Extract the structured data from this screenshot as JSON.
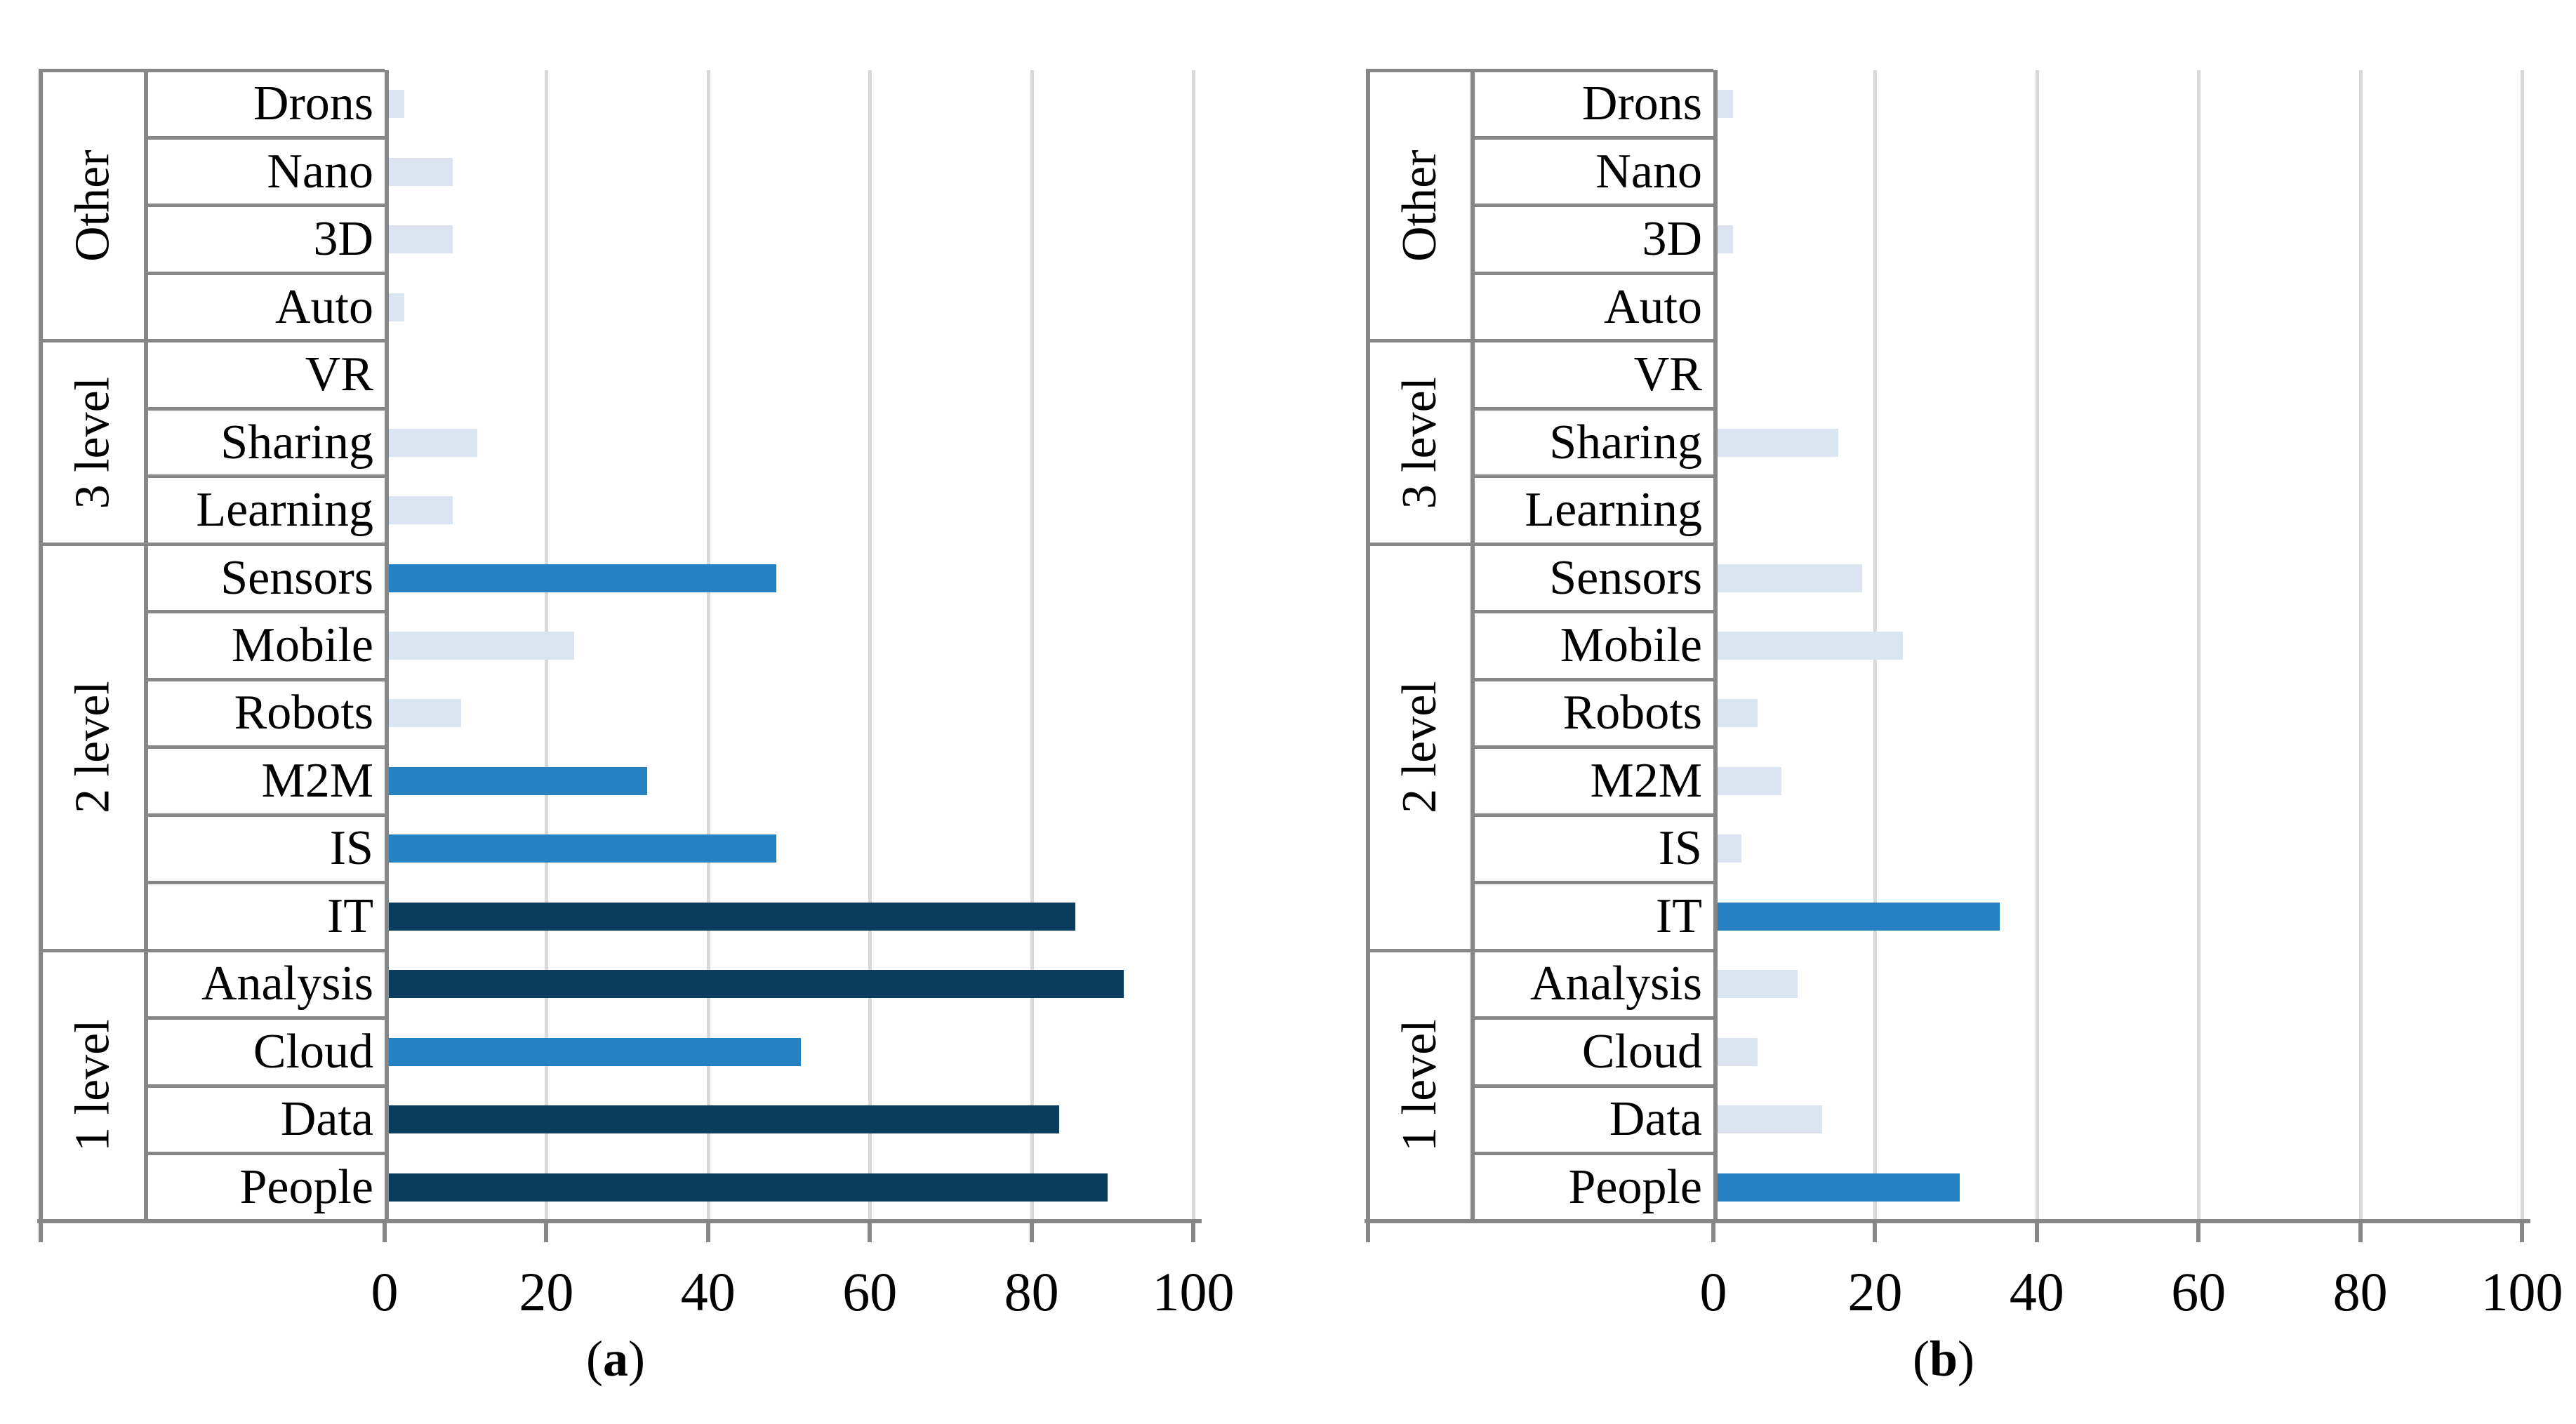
{
  "figure": {
    "background": "#ffffff",
    "border_color": "#878787",
    "gridline_color": "#d9d9d9"
  },
  "palette": {
    "dark": "#0a3d5e",
    "medium": "#2581c1",
    "light": "#dae5f1",
    "color_rule": "value>=80 dark, value>=30 medium, else light"
  },
  "thresholds": {
    "medium_min": 30,
    "dark_min": 80
  },
  "groups": [
    {
      "label": "Other",
      "items": [
        "Drons",
        "Nano",
        "3D",
        "Auto"
      ]
    },
    {
      "label": "3 level",
      "items": [
        "VR",
        "Sharing",
        "Learning"
      ]
    },
    {
      "label": "2 level",
      "items": [
        "Sensors",
        "Mobile",
        "Robots",
        "M2M",
        "IS",
        "IT"
      ]
    },
    {
      "label": "1 level",
      "items": [
        "Analysis",
        "Cloud",
        "Data",
        "People"
      ]
    }
  ],
  "chart_data": [
    {
      "type": "bar",
      "orientation": "horizontal",
      "panel": "a",
      "caption": {
        "open": "(",
        "label": "a",
        "close": ")"
      },
      "categories": [
        "Drons",
        "Nano",
        "3D",
        "Auto",
        "VR",
        "Sharing",
        "Learning",
        "Sensors",
        "Mobile",
        "Robots",
        "M2M",
        "IS",
        "IT",
        "Analysis",
        "Cloud",
        "Data",
        "People"
      ],
      "values": [
        2,
        8,
        8,
        2,
        0,
        11,
        8,
        48,
        23,
        9,
        32,
        48,
        85,
        91,
        51,
        83,
        89
      ],
      "group_spans": [
        4,
        3,
        6,
        4
      ],
      "xlim": [
        0,
        100
      ],
      "xticks": [
        0,
        20,
        40,
        60,
        80,
        100
      ],
      "grid": true,
      "legend": "none",
      "xlabel": "",
      "ylabel": ""
    },
    {
      "type": "bar",
      "orientation": "horizontal",
      "panel": "b",
      "caption": {
        "open": "(",
        "label": "b",
        "close": ")"
      },
      "categories": [
        "Drons",
        "Nano",
        "3D",
        "Auto",
        "VR",
        "Sharing",
        "Learning",
        "Sensors",
        "Mobile",
        "Robots",
        "M2M",
        "IS",
        "IT",
        "Analysis",
        "Cloud",
        "Data",
        "People"
      ],
      "values": [
        2,
        0,
        2,
        0,
        0,
        15,
        0,
        18,
        23,
        5,
        8,
        3,
        35,
        10,
        5,
        13,
        30
      ],
      "group_spans": [
        4,
        3,
        6,
        4
      ],
      "xlim": [
        0,
        100
      ],
      "xticks": [
        0,
        20,
        40,
        60,
        80,
        100
      ],
      "grid": true,
      "legend": "none",
      "xlabel": "",
      "ylabel": ""
    }
  ]
}
